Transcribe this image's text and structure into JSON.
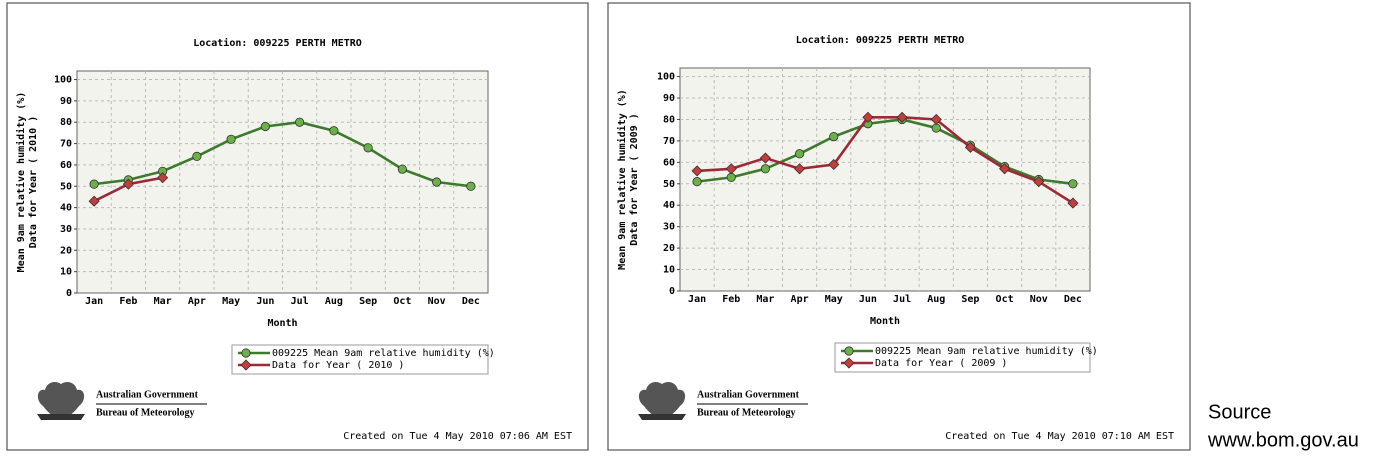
{
  "chart_data": [
    {
      "type": "line",
      "title": "Location: 009225 PERTH METRO",
      "ylabel": [
        "Mean 9am relative humidity (%)",
        "Data for Year ( 2010 )"
      ],
      "xlabel": "Month",
      "categories": [
        "Jan",
        "Feb",
        "Mar",
        "Apr",
        "May",
        "Jun",
        "Jul",
        "Aug",
        "Sep",
        "Oct",
        "Nov",
        "Dec"
      ],
      "series": [
        {
          "name": "009225 Mean 9am relative humidity (%)",
          "color": "#3c7a2c",
          "marker_color": "#6cb04a",
          "marker": "circle",
          "values": [
            51,
            53,
            57,
            64,
            72,
            78,
            80,
            76,
            68,
            58,
            52,
            50
          ]
        },
        {
          "name": "Data for Year ( 2010 )",
          "color": "#9c2a38",
          "marker_color": "#c43c3c",
          "marker": "diamond",
          "values": [
            43,
            51,
            54,
            null,
            null,
            null,
            null,
            null,
            null,
            null,
            null,
            null
          ]
        }
      ],
      "ylim": [
        0,
        104
      ],
      "yticks": [
        0,
        10,
        20,
        30,
        40,
        50,
        60,
        70,
        80,
        90,
        100
      ],
      "grid": true,
      "agency": "Australian Government",
      "bureau": "Bureau of Meteorology",
      "created": "Created on Tue  4 May 2010 07:06 AM EST"
    },
    {
      "type": "line",
      "title": "Location: 009225 PERTH METRO",
      "ylabel": [
        "Mean 9am relative humidity (%)",
        "Data for Year ( 2009 )"
      ],
      "xlabel": "Month",
      "categories": [
        "Jan",
        "Feb",
        "Mar",
        "Apr",
        "May",
        "Jun",
        "Jul",
        "Aug",
        "Sep",
        "Oct",
        "Nov",
        "Dec"
      ],
      "series": [
        {
          "name": "009225 Mean 9am relative humidity (%)",
          "color": "#3c7a2c",
          "marker_color": "#6cb04a",
          "marker": "circle",
          "values": [
            51,
            53,
            57,
            64,
            72,
            78,
            80,
            76,
            68,
            58,
            52,
            50
          ]
        },
        {
          "name": "Data for Year ( 2009 )",
          "color": "#9c2a38",
          "marker_color": "#c43c3c",
          "marker": "diamond",
          "values": [
            56,
            57,
            62,
            57,
            59,
            81,
            81,
            80,
            67,
            57,
            51,
            41
          ]
        }
      ],
      "ylim": [
        0,
        104
      ],
      "yticks": [
        0,
        10,
        20,
        30,
        40,
        50,
        60,
        70,
        80,
        90,
        100
      ],
      "grid": true,
      "agency": "Australian Government",
      "bureau": "Bureau of Meteorology",
      "created": "Created on Tue  4 May 2010 07:10 AM EST"
    }
  ],
  "source": {
    "label": "Source",
    "site": "www.bom.gov.au"
  }
}
